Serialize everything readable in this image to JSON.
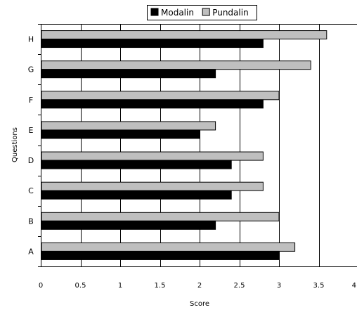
{
  "chart_data": {
    "type": "bar",
    "orientation": "horizontal",
    "title": "",
    "xlabel": "Score",
    "ylabel": "Questions",
    "categories": [
      "A",
      "B",
      "C",
      "D",
      "E",
      "F",
      "G",
      "H"
    ],
    "series": [
      {
        "name": "Modalin",
        "color": "#000000",
        "values": [
          3.0,
          2.2,
          2.4,
          2.4,
          2.0,
          2.8,
          2.2,
          2.8
        ]
      },
      {
        "name": "Pundalin",
        "color": "#bfbfbf",
        "values": [
          3.2,
          3.0,
          2.8,
          2.8,
          2.2,
          3.0,
          3.4,
          3.6
        ]
      }
    ],
    "xlim": [
      0,
      4
    ],
    "xticks": [
      "0",
      "0.5",
      "1",
      "1.5",
      "2",
      "2.5",
      "3",
      "3.5",
      "4"
    ],
    "grid": true,
    "legend_position": "top"
  }
}
